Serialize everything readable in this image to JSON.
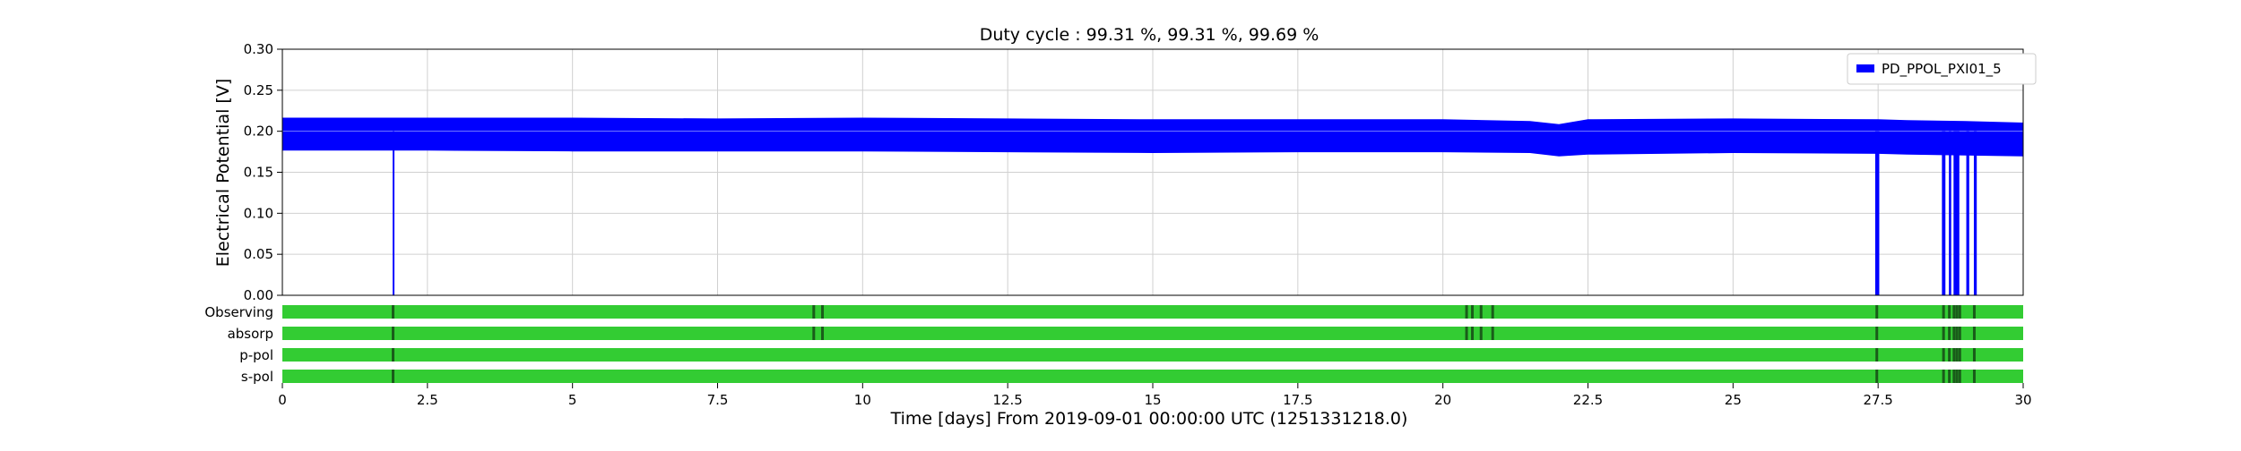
{
  "chart_data": {
    "type": "line",
    "title": "Duty cycle : 99.31 %, 99.31 %, 99.69 %",
    "xlabel": "Time [days] From 2019-09-01 00:00:00 UTC (1251331218.0)",
    "ylabel": "Electrical Potential [V]",
    "xlim": [
      0,
      30
    ],
    "ylim": [
      0,
      0.3
    ],
    "x_ticks": [
      "0",
      "2.5",
      "5",
      "7.5",
      "10",
      "12.5",
      "15",
      "17.5",
      "20",
      "22.5",
      "25",
      "27.5",
      "30"
    ],
    "y_ticks": [
      "0.00",
      "0.05",
      "0.10",
      "0.15",
      "0.20",
      "0.25",
      "0.30"
    ],
    "grid": true,
    "legend_position": "top-right",
    "series": [
      {
        "name": "PD_PPOL_PXI01_5",
        "color": "#0000ff",
        "band_x": [
          0,
          2.5,
          5,
          7.5,
          10,
          12.5,
          15,
          17.5,
          20,
          21.5,
          22.0,
          22.5,
          25,
          27.5,
          28.0,
          29.0,
          30
        ],
        "band_upper": [
          0.216,
          0.216,
          0.216,
          0.215,
          0.216,
          0.215,
          0.214,
          0.214,
          0.214,
          0.212,
          0.208,
          0.214,
          0.215,
          0.214,
          0.213,
          0.212,
          0.21
        ],
        "band_lower": [
          0.177,
          0.177,
          0.176,
          0.176,
          0.176,
          0.175,
          0.174,
          0.175,
          0.175,
          0.174,
          0.17,
          0.172,
          0.174,
          0.173,
          0.172,
          0.171,
          0.17
        ],
        "dropouts": [
          {
            "start": 1.9,
            "end": 1.93
          },
          {
            "start": 27.45,
            "end": 27.52
          },
          {
            "start": 28.6,
            "end": 28.66
          },
          {
            "start": 28.72,
            "end": 28.76
          },
          {
            "start": 28.8,
            "end": 28.9
          },
          {
            "start": 29.02,
            "end": 29.07
          },
          {
            "start": 29.15,
            "end": 29.2
          }
        ]
      }
    ],
    "state_bars": {
      "on_color": "#33cc33",
      "off_color": "#1a5c1a",
      "rows": [
        {
          "label": "Observing",
          "off": [
            1.9,
            9.15,
            9.3,
            20.4,
            20.5,
            20.65,
            20.85,
            27.47,
            28.62,
            28.72,
            28.8,
            28.85,
            28.9,
            29.15
          ]
        },
        {
          "label": "absorp",
          "off": [
            1.9,
            9.15,
            9.3,
            20.4,
            20.5,
            20.65,
            20.85,
            27.47,
            28.62,
            28.72,
            28.8,
            28.85,
            28.9,
            29.15
          ]
        },
        {
          "label": "p-pol",
          "off": [
            1.9,
            27.47,
            28.62,
            28.72,
            28.8,
            28.85,
            28.9,
            29.15
          ]
        },
        {
          "label": "s-pol",
          "off": [
            1.9,
            27.47,
            28.62,
            28.72,
            28.8,
            28.85,
            28.9,
            29.15
          ]
        }
      ]
    }
  }
}
